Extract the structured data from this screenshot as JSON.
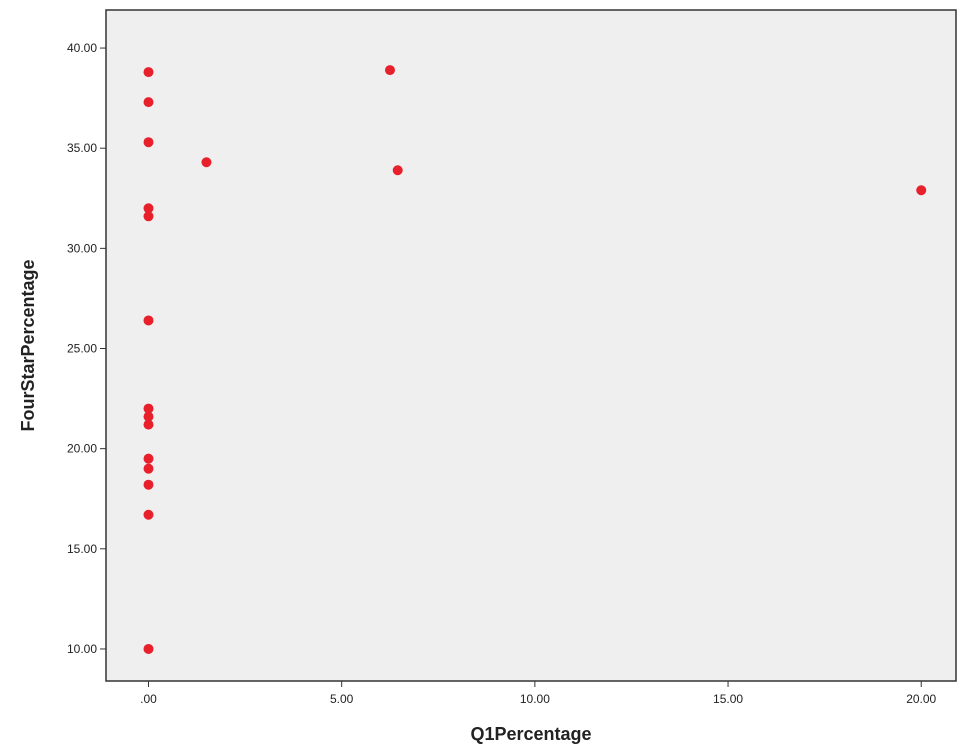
{
  "chart_data": {
    "type": "scatter",
    "xlabel": "Q1Percentage",
    "ylabel": "FourStarPercentage",
    "xlim": [
      -1.1,
      20.9
    ],
    "ylim": [
      8.4,
      41.9
    ],
    "x_ticks": [
      0,
      5,
      10,
      15,
      20
    ],
    "x_tick_labels": [
      ".00",
      "5.00",
      "10.00",
      "15.00",
      "20.00"
    ],
    "y_ticks": [
      10,
      15,
      20,
      25,
      30,
      35,
      40
    ],
    "y_tick_labels": [
      "10.00",
      "15.00",
      "20.00",
      "25.00",
      "30.00",
      "35.00",
      "40.00"
    ],
    "grid": false,
    "colors": {
      "background": "#efefef",
      "marker": "#e8202c",
      "axis": "#333333"
    },
    "series": [
      {
        "points": [
          {
            "x": 0,
            "y": 38.8
          },
          {
            "x": 0,
            "y": 37.3
          },
          {
            "x": 0,
            "y": 35.3
          },
          {
            "x": 0,
            "y": 32.0
          },
          {
            "x": 0,
            "y": 31.6
          },
          {
            "x": 0,
            "y": 26.4
          },
          {
            "x": 0,
            "y": 22.0
          },
          {
            "x": 0,
            "y": 21.6
          },
          {
            "x": 0,
            "y": 21.2
          },
          {
            "x": 0,
            "y": 19.5
          },
          {
            "x": 0,
            "y": 19.0
          },
          {
            "x": 0,
            "y": 18.2
          },
          {
            "x": 0,
            "y": 16.7
          },
          {
            "x": 0,
            "y": 10.0
          },
          {
            "x": 1.5,
            "y": 34.3
          },
          {
            "x": 6.25,
            "y": 38.9
          },
          {
            "x": 6.45,
            "y": 33.9
          },
          {
            "x": 20.0,
            "y": 32.9
          }
        ]
      }
    ]
  }
}
